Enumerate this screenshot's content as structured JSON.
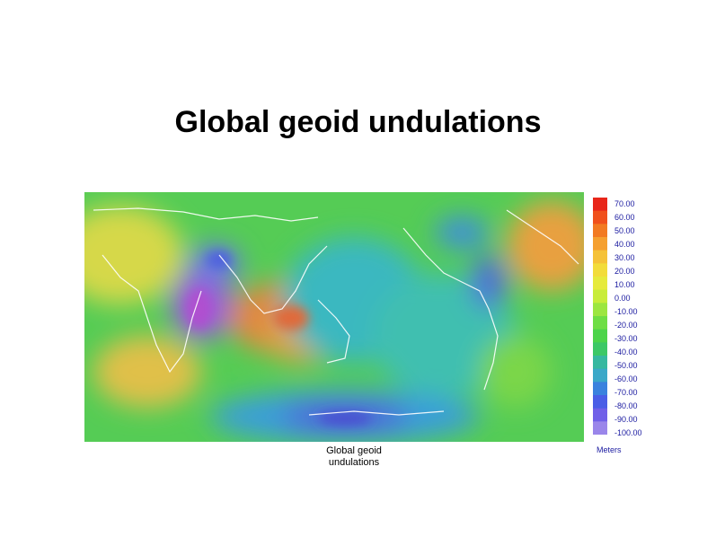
{
  "slide": {
    "title": "Global geoid undulations"
  },
  "map": {
    "caption_line1": "Global geoid",
    "caption_line2": "undulations"
  },
  "colorbar": {
    "units": "Meters",
    "labels": [
      "70.00",
      "60.00",
      "50.00",
      "40.00",
      "30.00",
      "20.00",
      "10.00",
      "0.00",
      "-10.00",
      "-20.00",
      "-30.00",
      "-40.00",
      "-50.00",
      "-60.00",
      "-70.00",
      "-80.00",
      "-90.00",
      "-100.00"
    ],
    "colors": [
      "#e8261a",
      "#f0501c",
      "#f27a22",
      "#f5a030",
      "#f5c238",
      "#f2dc3a",
      "#e6ea3c",
      "#c8ec3a",
      "#9ce640",
      "#6ede44",
      "#4cd44a",
      "#3cc866",
      "#36b8a0",
      "#3aa8c8",
      "#3a82de",
      "#4a5ee6",
      "#7060e8",
      "#9a86ea"
    ]
  }
}
